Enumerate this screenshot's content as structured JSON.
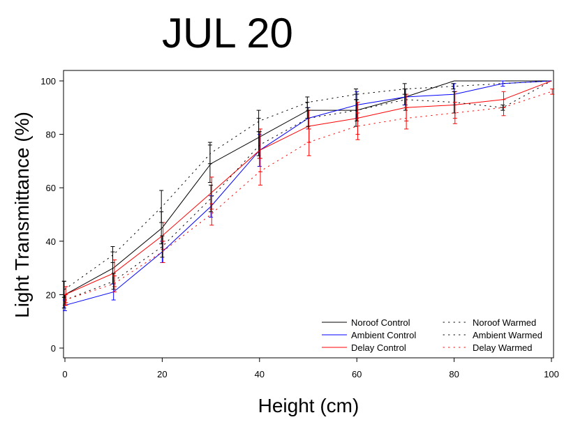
{
  "chart_data": {
    "type": "line",
    "title": "JUL 20",
    "xlabel": "Height (cm)",
    "ylabel": "Light Transmittance (%)",
    "xlim": [
      0,
      100
    ],
    "ylim": [
      0,
      100
    ],
    "xticks": [
      "0",
      "20",
      "40",
      "60",
      "80",
      "100"
    ],
    "yticks": [
      "0",
      "20",
      "40",
      "60",
      "80",
      "100"
    ],
    "legend_position": "bottom-right",
    "series": [
      {
        "name": "Noroof Control",
        "color": "#000000",
        "style": "solid",
        "x": [
          0,
          10,
          20,
          30,
          40,
          50,
          60,
          70,
          80,
          90,
          100
        ],
        "y": [
          20,
          30,
          45,
          69,
          79,
          89,
          89,
          94,
          100,
          100,
          100
        ],
        "err": [
          5,
          6,
          6,
          7,
          7,
          3,
          6,
          3,
          0,
          0,
          0
        ]
      },
      {
        "name": "Ambient Control",
        "color": "#0000ff",
        "style": "solid",
        "x": [
          0,
          10,
          20,
          30,
          40,
          50,
          60,
          70,
          80,
          90,
          100
        ],
        "y": [
          16,
          21,
          36,
          53,
          74,
          86,
          91,
          94,
          95,
          99,
          100
        ],
        "err": [
          2,
          3,
          4,
          4,
          6,
          4,
          5,
          3,
          4,
          1,
          0
        ]
      },
      {
        "name": "Delay Control",
        "color": "#ff0000",
        "style": "solid",
        "x": [
          0,
          10,
          20,
          30,
          40,
          50,
          60,
          70,
          80,
          90,
          100
        ],
        "y": [
          20,
          28,
          42,
          58,
          74,
          83,
          86,
          90,
          91,
          93,
          100
        ],
        "err": [
          3,
          5,
          5,
          6,
          8,
          6,
          6,
          5,
          5,
          3,
          0
        ]
      },
      {
        "name": "Noroof Warmed",
        "color": "#000000",
        "style": "dotted",
        "x": [
          0,
          10,
          20,
          30,
          40,
          50,
          60,
          70,
          80,
          90,
          100
        ],
        "y": [
          22,
          35,
          53,
          73,
          85,
          92,
          95,
          97,
          98,
          99,
          100
        ],
        "err": [
          3,
          3,
          6,
          4,
          4,
          2,
          2,
          2,
          1,
          0,
          0
        ]
      },
      {
        "name": "Ambient Warmed",
        "color": "#000000",
        "style": "dotted",
        "x": [
          0,
          10,
          20,
          30,
          40,
          50,
          60,
          70,
          80,
          90,
          100
        ],
        "y": [
          18,
          25,
          38,
          56,
          76,
          86,
          89,
          93,
          92,
          90,
          100
        ],
        "err": [
          2,
          3,
          4,
          5,
          5,
          3,
          4,
          4,
          4,
          1,
          0
        ]
      },
      {
        "name": "Delay Warmed",
        "color": "#ff0000",
        "style": "dotted",
        "x": [
          0,
          10,
          20,
          30,
          40,
          50,
          60,
          70,
          80,
          90,
          100
        ],
        "y": [
          18,
          24,
          36,
          50,
          66,
          77,
          83,
          86,
          88,
          90,
          96
        ],
        "err": [
          2,
          3,
          4,
          4,
          5,
          5,
          5,
          4,
          4,
          3,
          1
        ]
      }
    ]
  }
}
